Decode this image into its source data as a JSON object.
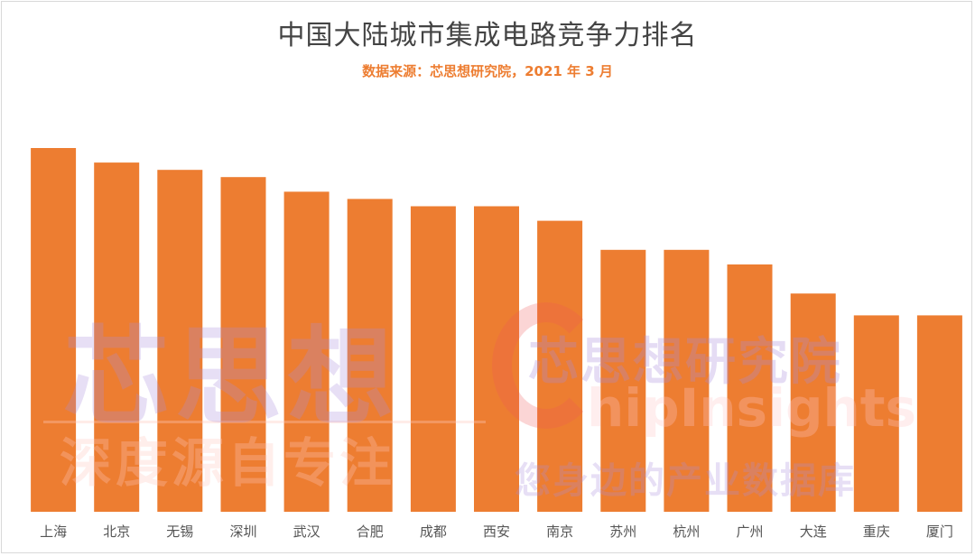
{
  "chart_data": {
    "type": "bar",
    "title": "中国大陆城市集成电路竞争力排名",
    "subtitle": "数据来源：芯思想研究院，2021 年 3 月",
    "categories": [
      "上海",
      "北京",
      "无锡",
      "深圳",
      "武汉",
      "合肥",
      "成都",
      "西安",
      "南京",
      "苏州",
      "杭州",
      "广州",
      "大连",
      "重庆",
      "厦门"
    ],
    "values": [
      100,
      96,
      94,
      92,
      88,
      86,
      84,
      84,
      80,
      72,
      72,
      68,
      60,
      54,
      54
    ],
    "ylim": [
      0,
      100
    ],
    "grid": false,
    "legend": "none",
    "bar_color": "#ed7d31"
  },
  "watermark": {
    "brand_cn": "芯思想",
    "slogan_left": "深度源自专注",
    "brand_full": "芯思想研究院",
    "brand_en": "hipInsights",
    "slogan_right": "您身边的产业数据库"
  }
}
